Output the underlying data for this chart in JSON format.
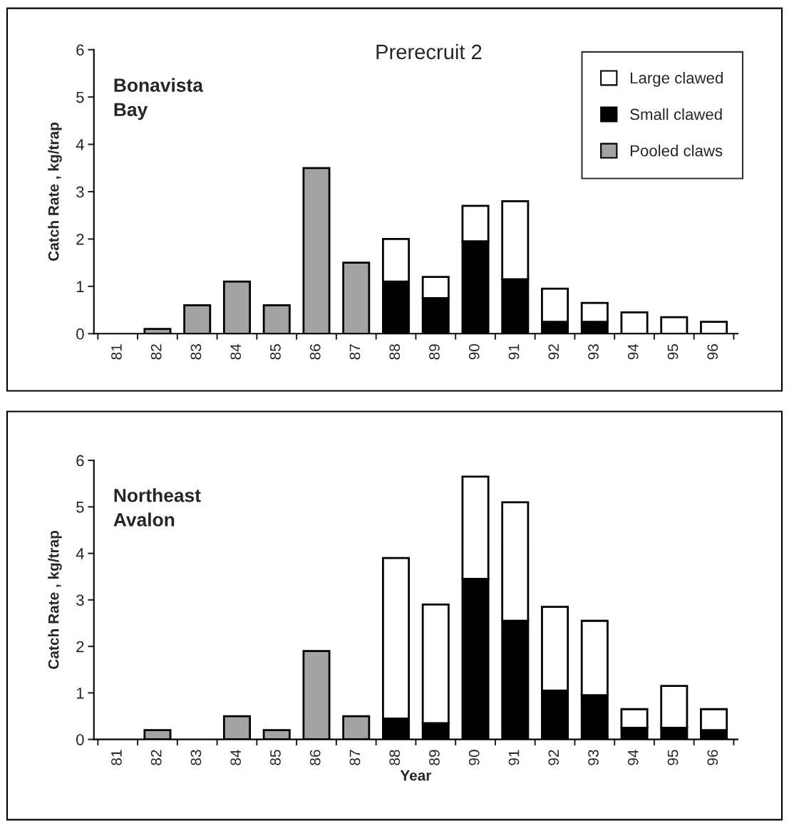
{
  "chart_data": [
    {
      "type": "bar",
      "title": "Prerecruit 2",
      "ylabel": "Catch Rate , kg/trap",
      "annotations": [
        "Bonavista\nBay"
      ],
      "categories": [
        "81",
        "82",
        "83",
        "84",
        "85",
        "86",
        "87",
        "88",
        "89",
        "90",
        "91",
        "92",
        "93",
        "94",
        "95",
        "96"
      ],
      "stacked": true,
      "ylim": [
        0,
        6
      ],
      "yticks": [
        0,
        1,
        2,
        3,
        4,
        5,
        6
      ],
      "legend": "top right",
      "series": [
        {
          "name": "Pooled claws",
          "color": "#a3a3a3",
          "values": [
            null,
            0.1,
            0.6,
            1.1,
            0.6,
            3.5,
            1.5,
            null,
            null,
            null,
            null,
            null,
            null,
            null,
            null,
            null
          ]
        },
        {
          "name": "Small clawed",
          "color": "#000000",
          "values": [
            null,
            null,
            null,
            null,
            null,
            null,
            null,
            1.1,
            0.75,
            1.95,
            1.15,
            0.25,
            0.25,
            null,
            null,
            null
          ]
        },
        {
          "name": "Large clawed",
          "color": "#ffffff",
          "values": [
            null,
            null,
            null,
            null,
            null,
            null,
            null,
            0.9,
            0.45,
            0.75,
            1.65,
            0.7,
            0.4,
            0.45,
            0.35,
            0.25
          ]
        }
      ]
    },
    {
      "type": "bar",
      "xlabel": "Year",
      "ylabel": "Catch Rate , kg/trap",
      "annotations": [
        "Northeast\nAvalon"
      ],
      "categories": [
        "81",
        "82",
        "83",
        "84",
        "85",
        "86",
        "87",
        "88",
        "89",
        "90",
        "91",
        "92",
        "93",
        "94",
        "95",
        "96"
      ],
      "stacked": true,
      "ylim": [
        0,
        6
      ],
      "yticks": [
        0,
        1,
        2,
        3,
        4,
        5,
        6
      ],
      "series": [
        {
          "color": "#a3a3a3",
          "values": [
            null,
            0.2,
            null,
            0.5,
            0.2,
            1.9,
            0.5,
            null,
            null,
            null,
            null,
            null,
            null,
            null,
            null,
            null
          ]
        },
        {
          "color": "#000000",
          "values": [
            null,
            null,
            null,
            null,
            null,
            null,
            null,
            0.45,
            0.35,
            3.45,
            2.55,
            1.05,
            0.95,
            0.25,
            0.25,
            0.2
          ]
        },
        {
          "color": "#ffffff",
          "values": [
            null,
            null,
            null,
            null,
            null,
            null,
            null,
            3.45,
            2.55,
            2.2,
            2.55,
            1.8,
            1.6,
            0.4,
            0.9,
            0.45
          ]
        }
      ]
    }
  ]
}
